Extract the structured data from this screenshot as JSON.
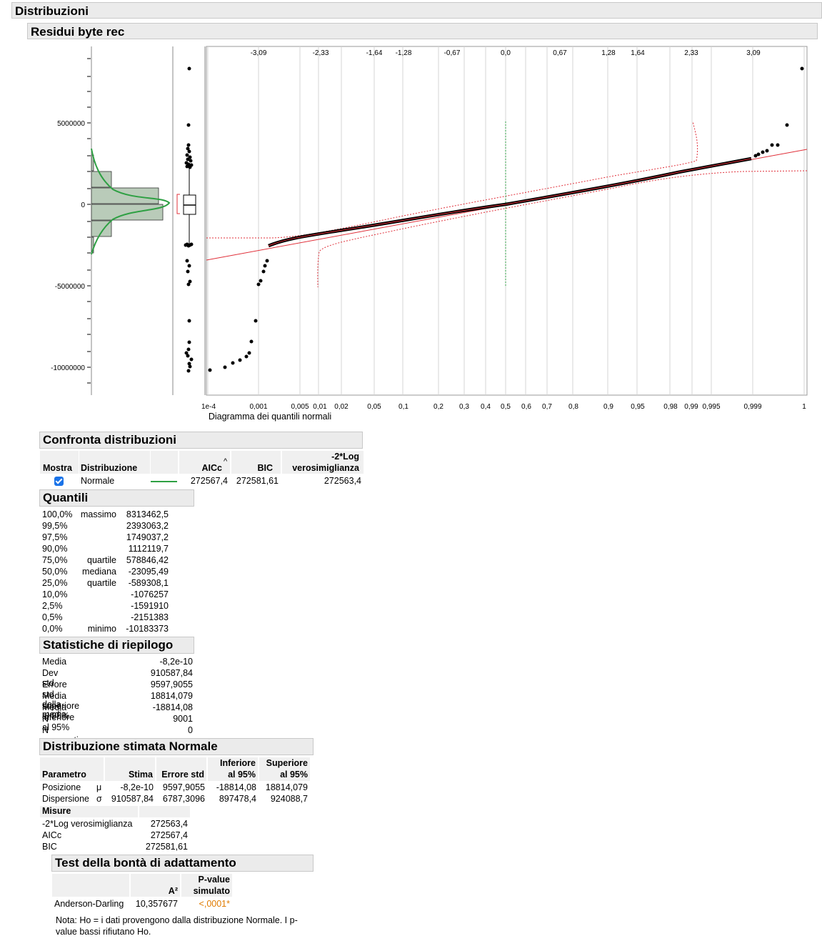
{
  "titles": {
    "distribuzioni": "Distribuzioni",
    "residui": "Residui byte rec",
    "confronta": "Confronta distribuzioni",
    "quantili": "Quantili",
    "statistiche": "Statistiche di riepilogo",
    "stimata": "Distribuzione stimata Normale",
    "test": "Test della bontà di adattamento"
  },
  "plot": {
    "xlabel": "Diagramma dei quantili normali",
    "y_ticks": [
      "5000000",
      "0",
      "-5000000",
      "-10000000"
    ],
    "top_ticks": [
      "-3,09",
      "-2,33",
      "-1,64",
      "-1,28",
      "-0,67",
      "0,0",
      "0,67",
      "1,28",
      "1,64",
      "2,33",
      "3,09"
    ],
    "bottom_ticks": [
      "1e-4",
      "0,001",
      "0,005",
      "0,01",
      "0,02",
      "0,05",
      "0,1",
      "0,2",
      "0,3",
      "0,4",
      "0,5",
      "0,6",
      "0,7",
      "0,8",
      "0,9",
      "0,95",
      "0,98",
      "0,99",
      "0,995",
      "0,999",
      "1"
    ],
    "colors": {
      "fit_line": "#e0303a",
      "normal_curve": "#2ea043",
      "hist_fill": "#b9cbb9",
      "points": "#000000"
    }
  },
  "confronta": {
    "headers": {
      "mostra": "Mostra",
      "distribuzione": "Distribuzione",
      "aicc": "AICc",
      "bic": "BIC",
      "loglik1": "-2*Log",
      "loglik2": "verosimiglianza"
    },
    "sort_icon": "caret-up-icon",
    "row": {
      "checked": true,
      "name": "Normale",
      "aicc": "272567,4",
      "bic": "272581,61",
      "loglik": "272563,4"
    }
  },
  "quantili": [
    {
      "pct": "100,0%",
      "label": "massimo",
      "value": "8313462,5"
    },
    {
      "pct": "99,5%",
      "label": "",
      "value": "2393063,2"
    },
    {
      "pct": "97,5%",
      "label": "",
      "value": "1749037,2"
    },
    {
      "pct": "90,0%",
      "label": "",
      "value": "1112119,7"
    },
    {
      "pct": "75,0%",
      "label": "quartile",
      "value": "578846,42"
    },
    {
      "pct": "50,0%",
      "label": "mediana",
      "value": "-23095,49"
    },
    {
      "pct": "25,0%",
      "label": "quartile",
      "value": "-589308,1"
    },
    {
      "pct": "10,0%",
      "label": "",
      "value": "-1076257"
    },
    {
      "pct": "2,5%",
      "label": "",
      "value": "-1591910"
    },
    {
      "pct": "0,5%",
      "label": "",
      "value": "-2151383"
    },
    {
      "pct": "0,0%",
      "label": "minimo",
      "value": "-10183373"
    }
  ],
  "statistiche": [
    {
      "label": "Media",
      "value": "-8,2e-10"
    },
    {
      "label": "Dev std",
      "value": "910587,84"
    },
    {
      "label": "Errore std della media",
      "value": "9597,9055"
    },
    {
      "label": "Media superiore al 95%",
      "value": "18814,079"
    },
    {
      "label": "Media inferiore al 95%",
      "value": "-18814,08"
    },
    {
      "label": "N",
      "value": "9001"
    },
    {
      "label": "N mancanti",
      "value": "0"
    }
  ],
  "stimata": {
    "headers": {
      "parametro": "Parametro",
      "stima": "Stima",
      "errore": "Errore std",
      "inf1": "Inferiore",
      "inf2": "al 95%",
      "sup1": "Superiore",
      "sup2": "al 95%"
    },
    "rows": [
      {
        "name": "Posizione",
        "sym": "μ",
        "stima": "-8,2e-10",
        "errore": "9597,9055",
        "inf": "-18814,08",
        "sup": "18814,079"
      },
      {
        "name": "Dispersione",
        "sym": "σ",
        "stima": "910587,84",
        "errore": "6787,3096",
        "inf": "897478,4",
        "sup": "924088,7"
      }
    ],
    "misure_title": "Misure",
    "misure": [
      {
        "label": "-2*Log verosimiglianza",
        "value": "272563,4"
      },
      {
        "label": "AICc",
        "value": "272567,4"
      },
      {
        "label": "BIC",
        "value": "272581,61"
      }
    ]
  },
  "test": {
    "headers": {
      "a2": "A²",
      "p1": "P-value",
      "p2": "simulato"
    },
    "row": {
      "name": "Anderson-Darling",
      "a2": "10,357677",
      "p": "<,0001*"
    },
    "nota1": "Nota: Ho = i dati provengono dalla distribuzione Normale. I p-",
    "nota2": "value bassi rifiutano Ho."
  }
}
